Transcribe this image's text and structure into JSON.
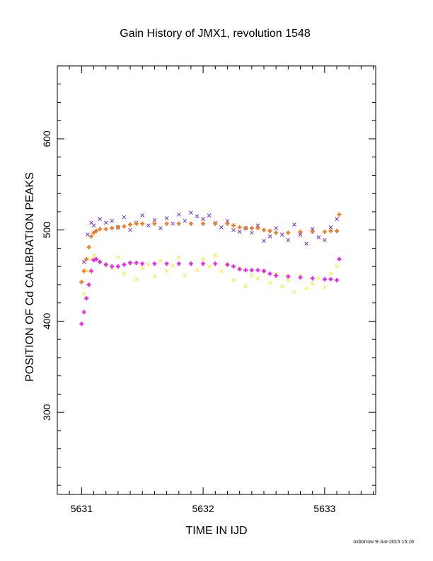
{
  "chart_data": {
    "type": "scatter",
    "title": "Gain History of JMX1, revolution 1548",
    "xlabel": "TIME IN IJD",
    "ylabel": "POSITION OF Cd CALIBRATION PEAKS",
    "footer": "oxborrow  9-Jun-2015 15:16",
    "xlim": [
      5630.8,
      5633.42
    ],
    "ylim": [
      210,
      680
    ],
    "xticks": [
      5631,
      5632,
      5633
    ],
    "yticks": [
      300,
      400,
      500,
      600
    ],
    "grid": false,
    "legend": "none",
    "series": [
      {
        "marker": "x",
        "color": "#7b2fd0",
        "x": [
          5631.02,
          5631.05,
          5631.08,
          5631.1,
          5631.15,
          5631.2,
          5631.25,
          5631.3,
          5631.35,
          5631.4,
          5631.45,
          5631.5,
          5631.55,
          5631.6,
          5631.65,
          5631.7,
          5631.75,
          5631.8,
          5631.85,
          5631.9,
          5631.95,
          5632.0,
          5632.05,
          5632.1,
          5632.15,
          5632.2,
          5632.25,
          5632.3,
          5632.35,
          5632.4,
          5632.45,
          5632.5,
          5632.55,
          5632.6,
          5632.65,
          5632.7,
          5632.75,
          5632.8,
          5632.85,
          5632.9,
          5632.95,
          5633.0,
          5633.05,
          5633.1
        ],
        "y": [
          465,
          495,
          508,
          505,
          512,
          508,
          510,
          503,
          514,
          500,
          508,
          516,
          505,
          511,
          502,
          513,
          507,
          517,
          510,
          519,
          515,
          512,
          516,
          508,
          503,
          510,
          500,
          498,
          502,
          497,
          505,
          488,
          493,
          502,
          495,
          489,
          506,
          495,
          485,
          501,
          492,
          489,
          503,
          512
        ]
      },
      {
        "marker": "x",
        "color": "#f2ee2e",
        "x": [
          5631.02,
          5631.05,
          5631.08,
          5631.1,
          5631.15,
          5631.2,
          5631.25,
          5631.3,
          5631.35,
          5631.4,
          5631.45,
          5631.5,
          5631.55,
          5631.6,
          5631.65,
          5631.7,
          5631.75,
          5631.8,
          5631.85,
          5631.9,
          5631.95,
          5632.0,
          5632.05,
          5632.1,
          5632.15,
          5632.2,
          5632.25,
          5632.3,
          5632.35,
          5632.4,
          5632.45,
          5632.5,
          5632.55,
          5632.6,
          5632.65,
          5632.7,
          5632.75,
          5632.8,
          5632.85,
          5632.9,
          5632.95,
          5633.0,
          5633.05,
          5633.1
        ],
        "y": [
          430,
          455,
          468,
          472,
          466,
          462,
          458,
          470,
          452,
          464,
          446,
          458,
          462,
          449,
          466,
          455,
          461,
          470,
          450,
          464,
          456,
          468,
          460,
          472,
          455,
          462,
          445,
          458,
          438,
          450,
          447,
          455,
          442,
          452,
          438,
          445,
          432,
          450,
          436,
          441,
          447,
          437,
          452,
          460
        ]
      },
      {
        "marker": "+",
        "color": "#f07d1e",
        "x": [
          5631.0,
          5631.02,
          5631.04,
          5631.06,
          5631.08,
          5631.1,
          5631.12,
          5631.15,
          5631.2,
          5631.25,
          5631.3,
          5631.35,
          5631.4,
          5631.45,
          5631.5,
          5631.6,
          5631.7,
          5631.8,
          5631.9,
          5632.0,
          5632.1,
          5632.2,
          5632.25,
          5632.3,
          5632.35,
          5632.4,
          5632.45,
          5632.5,
          5632.55,
          5632.6,
          5632.7,
          5632.8,
          5632.9,
          5633.0,
          5633.05,
          5633.1,
          5633.12
        ],
        "y": [
          443,
          455,
          468,
          481,
          493,
          497,
          499,
          501,
          501,
          502,
          503,
          504,
          506,
          507,
          507,
          507,
          507,
          507,
          507,
          507,
          507,
          507,
          505,
          503,
          502,
          502,
          502,
          500,
          499,
          497,
          497,
          498,
          498,
          498,
          499,
          499,
          517
        ]
      },
      {
        "marker": "+",
        "color": "#ee22ee",
        "x": [
          5631.0,
          5631.02,
          5631.04,
          5631.06,
          5631.08,
          5631.1,
          5631.12,
          5631.15,
          5631.2,
          5631.25,
          5631.3,
          5631.35,
          5631.4,
          5631.45,
          5631.5,
          5631.6,
          5631.7,
          5631.8,
          5631.9,
          5632.0,
          5632.1,
          5632.2,
          5632.25,
          5632.3,
          5632.35,
          5632.4,
          5632.45,
          5632.5,
          5632.55,
          5632.6,
          5632.7,
          5632.8,
          5632.9,
          5633.0,
          5633.05,
          5633.1,
          5633.12
        ],
        "y": [
          397,
          410,
          425,
          440,
          455,
          467,
          468,
          465,
          462,
          460,
          460,
          462,
          464,
          464,
          463,
          463,
          463,
          463,
          463,
          463,
          463,
          462,
          460,
          457,
          456,
          456,
          456,
          455,
          452,
          450,
          449,
          448,
          447,
          446,
          446,
          445,
          468
        ]
      }
    ]
  }
}
